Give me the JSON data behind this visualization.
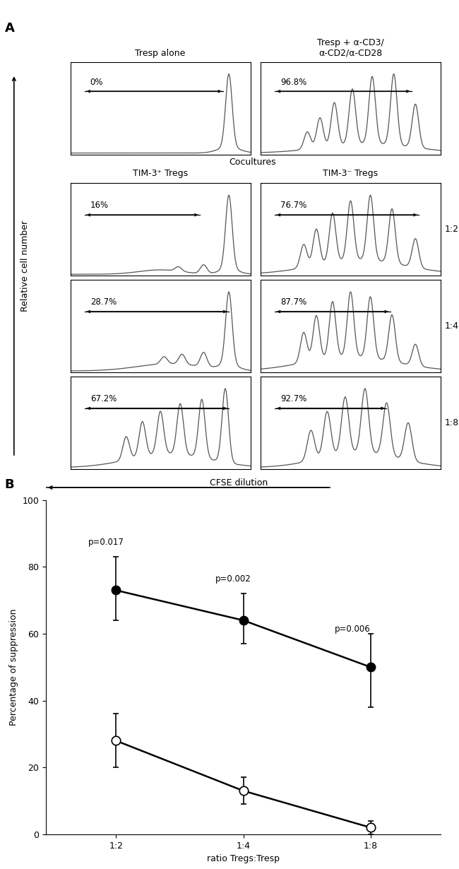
{
  "panel_A_label": "A",
  "panel_B_label": "B",
  "top_label_left": "Tresp alone",
  "top_label_right": "Tresp + α-CD3/\nα-CD2/α-CD28",
  "coculture_label": "Cocultures",
  "tim3pos_label": "TIM-3⁺ Tregs",
  "tim3neg_label": "TIM-3⁻ Tregs",
  "row_labels": [
    "1:2",
    "1:4",
    "1:8"
  ],
  "percentages": [
    [
      "0%",
      "96.8%"
    ],
    [
      "16%",
      "76.7%"
    ],
    [
      "28.7%",
      "87.7%"
    ],
    [
      "67.2%",
      "92.7%"
    ]
  ],
  "cfse_label": "CFSE dilution",
  "y_axis_label": "Relative cell number",
  "plot_B": {
    "xlabel": "ratio Tregs:Tresp",
    "ylabel": "Percentage of suppression",
    "xtick_labels": [
      "1:2",
      "1:4",
      "1:8"
    ],
    "ylim": [
      0,
      100
    ],
    "yticks": [
      0,
      20,
      40,
      60,
      80,
      100
    ],
    "tim3pos_values": [
      73,
      64,
      50
    ],
    "tim3pos_yerr_lo": [
      9,
      7,
      12
    ],
    "tim3pos_yerr_hi": [
      10,
      8,
      10
    ],
    "tim3neg_values": [
      28,
      13,
      2
    ],
    "tim3neg_yerr_lo": [
      8,
      4,
      2
    ],
    "tim3neg_yerr_hi": [
      8,
      4,
      2
    ],
    "p_values": [
      "p=0.017",
      "p=0.002",
      "p=0.006"
    ],
    "legend_pos_tregs": "TIM-3⁺ Tregs",
    "legend_neg_tregs": "TIM-3⁻ Tregs"
  }
}
